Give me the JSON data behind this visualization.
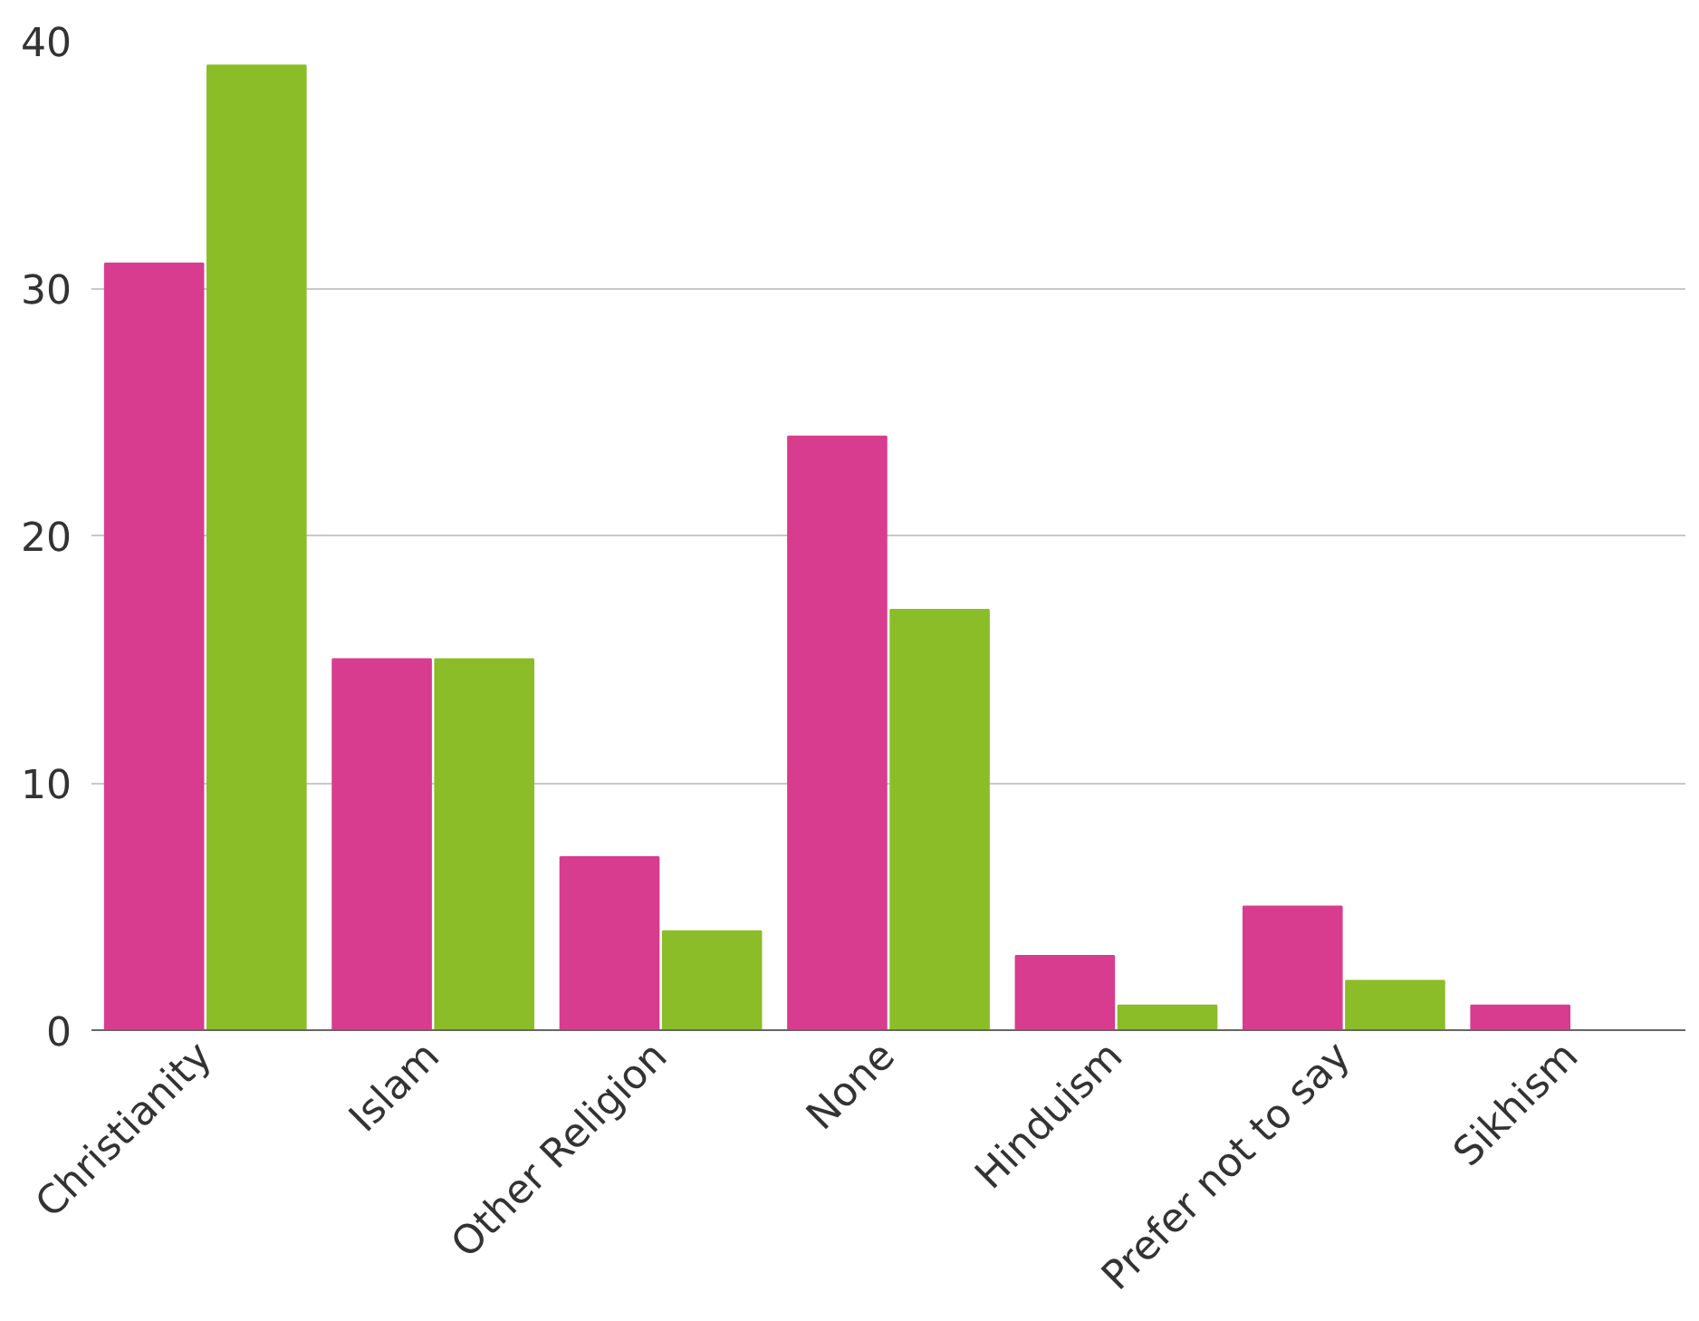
{
  "chart_data": {
    "type": "bar",
    "categories": [
      "Christianity",
      "Islam",
      "Other Religion",
      "None",
      "Hinduism",
      "Prefer not to say",
      "Sikhism"
    ],
    "series": [
      {
        "color": "#d83c8e",
        "values": [
          31,
          15,
          7,
          24,
          3,
          5,
          1
        ]
      },
      {
        "color": "#8bbd28",
        "values": [
          39,
          15,
          4,
          17,
          1,
          2,
          null
        ]
      }
    ],
    "ylim": [
      0,
      40
    ],
    "yticks": [
      0,
      10,
      20,
      30,
      40
    ],
    "grid": "y"
  }
}
